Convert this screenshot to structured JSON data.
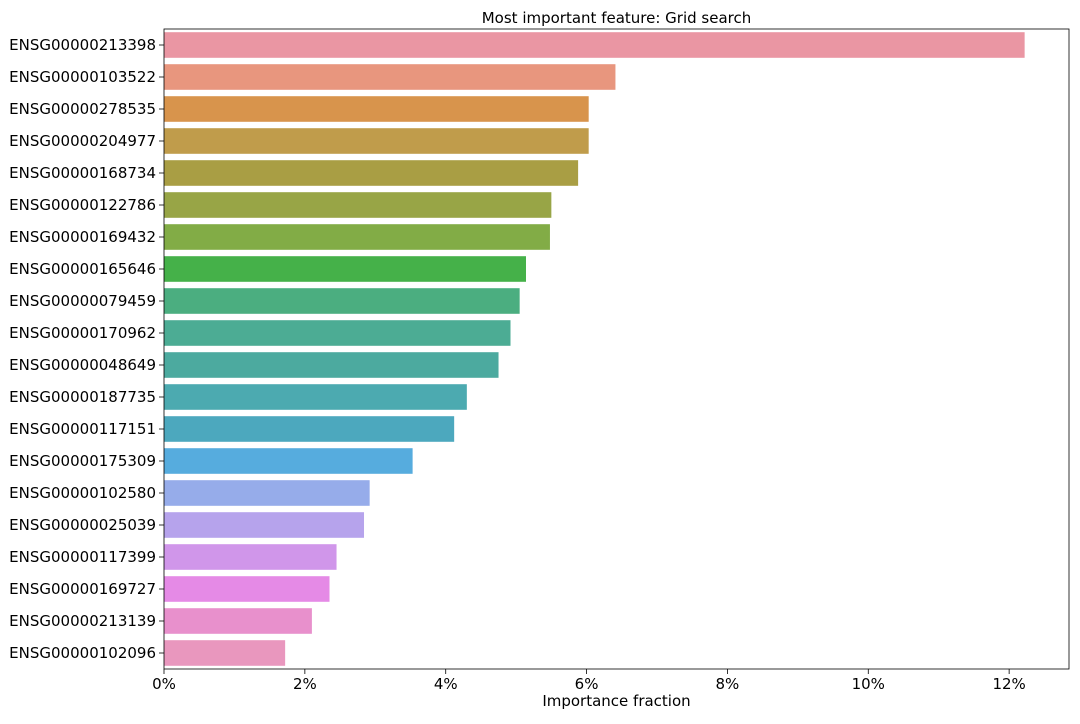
{
  "chart_data": {
    "type": "bar",
    "orientation": "horizontal",
    "title": "Most important feature: Grid search",
    "xlabel": "Importance fraction",
    "ylabel": "",
    "xlim": [
      0,
      0.1285
    ],
    "xticks": [
      0,
      0.02,
      0.04,
      0.06,
      0.08,
      0.1,
      0.12
    ],
    "xtick_labels": [
      "0%",
      "2%",
      "4%",
      "6%",
      "8%",
      "10%",
      "12%"
    ],
    "grid": false,
    "categories": [
      "ENSG00000213398",
      "ENSG00000103522",
      "ENSG00000278535",
      "ENSG00000204977",
      "ENSG00000168734",
      "ENSG00000122786",
      "ENSG00000169432",
      "ENSG00000165646",
      "ENSG00000079459",
      "ENSG00000170962",
      "ENSG00000048649",
      "ENSG00000187735",
      "ENSG00000117151",
      "ENSG00000175309",
      "ENSG00000102580",
      "ENSG00000025039",
      "ENSG00000117399",
      "ENSG00000169727",
      "ENSG00000213139",
      "ENSG00000102096"
    ],
    "values": [
      0.1222,
      0.0641,
      0.0603,
      0.0603,
      0.0588,
      0.055,
      0.0548,
      0.0514,
      0.0505,
      0.0492,
      0.0475,
      0.043,
      0.0412,
      0.0353,
      0.0292,
      0.0284,
      0.0245,
      0.0235,
      0.021,
      0.0172
    ],
    "colors": [
      "#ea96a3",
      "#e8967e",
      "#d8944c",
      "#c09c4b",
      "#a99e44",
      "#98a546",
      "#82ac46",
      "#45b149",
      "#4bae80",
      "#4cac94",
      "#4caa9f",
      "#4caab0",
      "#4ca8be",
      "#56acde",
      "#96acea",
      "#b6a3ec",
      "#d096ea",
      "#e58ae6",
      "#e890cc",
      "#e997be"
    ]
  }
}
